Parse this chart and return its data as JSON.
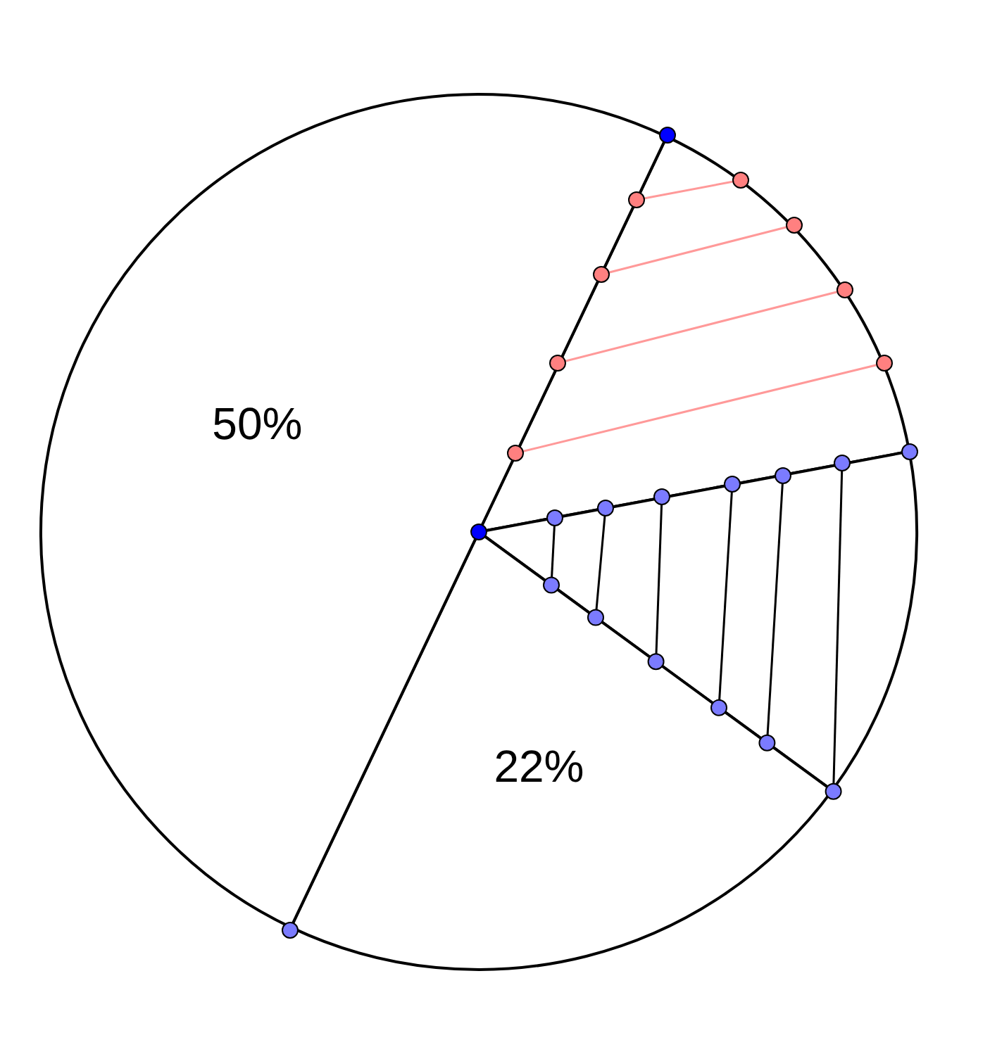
{
  "chart_data": {
    "type": "pie",
    "categories": [
      null,
      null,
      null,
      null
    ],
    "values": [
      15,
      13,
      22,
      50
    ],
    "colors": [
      "#ffffff",
      "#ffffff",
      "#ffffff",
      "#ffffff"
    ],
    "value_labels": [
      null,
      null,
      "22%",
      "50%"
    ],
    "legend": false
  }
}
